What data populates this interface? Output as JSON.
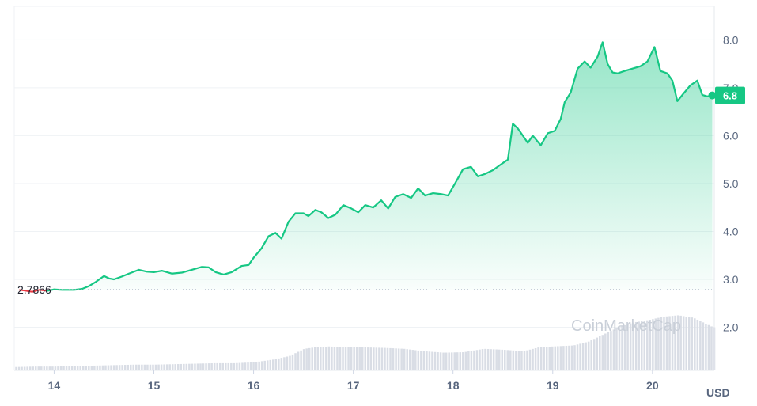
{
  "chart_data": {
    "type": "line",
    "unit_label": "USD",
    "watermark": "CoinMarketCap",
    "start_label": "2.7866",
    "current_price_label": "6.8",
    "x_ticks": [
      "14",
      "15",
      "16",
      "17",
      "18",
      "19",
      "20"
    ],
    "y_ticks": [
      "2.0",
      "3.0",
      "4.0",
      "5.0",
      "6.0",
      "7.0",
      "8.0"
    ],
    "ylim": [
      1.1,
      8.7
    ],
    "xlim": [
      13.6,
      20.62
    ],
    "grid": true,
    "colors": {
      "up": "#16c784",
      "down": "#ea3943",
      "volume": "#d9dde5",
      "label_bg": "#16c784"
    },
    "price_series": {
      "name": "",
      "x": [
        13.65,
        13.72,
        13.78,
        13.85,
        13.93,
        14.0,
        14.08,
        14.15,
        14.2,
        14.28,
        14.35,
        14.42,
        14.5,
        14.55,
        14.6,
        14.68,
        14.75,
        14.85,
        14.93,
        15.0,
        15.08,
        15.18,
        15.28,
        15.38,
        15.48,
        15.55,
        15.62,
        15.7,
        15.78,
        15.88,
        15.95,
        16.0,
        16.08,
        16.15,
        16.22,
        16.28,
        16.35,
        16.42,
        16.5,
        16.55,
        16.62,
        16.68,
        16.75,
        16.82,
        16.9,
        16.98,
        17.05,
        17.12,
        17.2,
        17.28,
        17.35,
        17.42,
        17.5,
        17.58,
        17.65,
        17.72,
        17.8,
        17.88,
        17.95,
        18.02,
        18.1,
        18.18,
        18.25,
        18.32,
        18.4,
        18.48,
        18.55,
        18.6,
        18.65,
        18.7,
        18.75,
        18.8,
        18.88,
        18.95,
        19.02,
        19.08,
        19.12,
        19.18,
        19.25,
        19.32,
        19.38,
        19.45,
        19.5,
        19.55,
        19.6,
        19.65,
        19.72,
        19.8,
        19.88,
        19.95,
        20.02,
        20.08,
        20.15,
        20.2,
        20.25,
        20.3,
        20.38,
        20.45,
        20.5,
        20.55,
        20.6
      ],
      "y": [
        2.78,
        2.76,
        2.74,
        2.78,
        2.76,
        2.79,
        2.78,
        2.78,
        2.78,
        2.8,
        2.86,
        2.95,
        3.07,
        3.02,
        3.0,
        3.06,
        3.12,
        3.2,
        3.16,
        3.15,
        3.18,
        3.12,
        3.14,
        3.2,
        3.26,
        3.25,
        3.15,
        3.1,
        3.15,
        3.28,
        3.3,
        3.45,
        3.65,
        3.9,
        3.97,
        3.85,
        4.2,
        4.38,
        4.38,
        4.32,
        4.45,
        4.4,
        4.28,
        4.35,
        4.55,
        4.48,
        4.4,
        4.55,
        4.5,
        4.65,
        4.48,
        4.72,
        4.78,
        4.7,
        4.9,
        4.75,
        4.8,
        4.78,
        4.75,
        5.0,
        5.3,
        5.35,
        5.15,
        5.2,
        5.28,
        5.4,
        5.5,
        6.25,
        6.15,
        6.0,
        5.85,
        6.0,
        5.8,
        6.05,
        6.1,
        6.35,
        6.7,
        6.9,
        7.4,
        7.55,
        7.42,
        7.65,
        7.95,
        7.5,
        7.32,
        7.3,
        7.35,
        7.4,
        7.45,
        7.55,
        7.85,
        7.35,
        7.3,
        7.15,
        6.72,
        6.85,
        7.05,
        7.15,
        6.85,
        6.82,
        6.84
      ]
    },
    "volume_series": {
      "name": "",
      "x": [
        13.6,
        13.8,
        14.0,
        14.2,
        14.4,
        14.6,
        14.8,
        15.0,
        15.2,
        15.4,
        15.6,
        15.8,
        16.0,
        16.2,
        16.35,
        16.5,
        16.6,
        16.75,
        16.9,
        17.1,
        17.3,
        17.5,
        17.7,
        17.9,
        18.1,
        18.3,
        18.5,
        18.7,
        18.85,
        19.0,
        19.2,
        19.35,
        19.5,
        19.65,
        19.8,
        19.95,
        20.1,
        20.25,
        20.4,
        20.5,
        20.6
      ],
      "y": [
        1.17,
        1.18,
        1.18,
        1.19,
        1.2,
        1.21,
        1.22,
        1.22,
        1.23,
        1.24,
        1.25,
        1.25,
        1.27,
        1.33,
        1.4,
        1.55,
        1.58,
        1.6,
        1.58,
        1.58,
        1.57,
        1.55,
        1.5,
        1.47,
        1.48,
        1.55,
        1.53,
        1.5,
        1.58,
        1.6,
        1.62,
        1.7,
        1.85,
        2.0,
        2.1,
        2.15,
        2.22,
        2.25,
        2.2,
        2.1,
        2.0
      ]
    }
  }
}
